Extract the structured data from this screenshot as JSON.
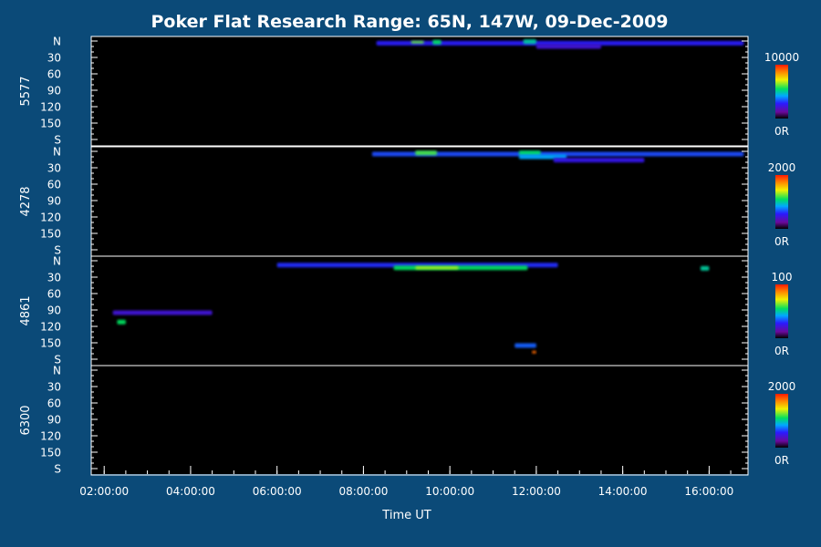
{
  "title": "Poker Flat Research Range: 65N, 147W, 09-Dec-2009",
  "colors": {
    "background": "#0b4a78",
    "plot": "#000000",
    "axis": "#ffffff"
  },
  "chart_data": {
    "type": "heatmap",
    "title": "Poker Flat Research Range: 65N, 147W, 09-Dec-2009",
    "xlabel": "Time UT",
    "x_tick_labels": [
      "02:00:00",
      "04:00:00",
      "06:00:00",
      "08:00:00",
      "10:00:00",
      "12:00:00",
      "14:00:00",
      "16:00:00"
    ],
    "x_range_hours": [
      1.7,
      16.9
    ],
    "y_tick_labels": [
      "N",
      "30",
      "60",
      "90",
      "120",
      "150",
      "S"
    ],
    "y_range_deg": [
      0,
      180
    ],
    "grid": false,
    "panels": [
      {
        "wavelength": "5577",
        "colorbar": {
          "max": "10000",
          "min": "0R"
        },
        "features": [
          {
            "t_start": 8.3,
            "t_end": 16.8,
            "elev_deg": 4,
            "intensity": 0.28
          },
          {
            "t_start": 9.1,
            "t_end": 9.4,
            "elev_deg": 2,
            "intensity": 0.62
          },
          {
            "t_start": 9.6,
            "t_end": 9.8,
            "elev_deg": 2,
            "intensity": 0.55
          },
          {
            "t_start": 11.7,
            "t_end": 12.0,
            "elev_deg": 1,
            "intensity": 0.5
          },
          {
            "t_start": 12.0,
            "t_end": 13.5,
            "elev_deg": 10,
            "intensity": 0.22
          }
        ]
      },
      {
        "wavelength": "4278",
        "colorbar": {
          "max": "2000",
          "min": "0R"
        },
        "features": [
          {
            "t_start": 8.2,
            "t_end": 16.8,
            "elev_deg": 5,
            "intensity": 0.33
          },
          {
            "t_start": 9.2,
            "t_end": 9.7,
            "elev_deg": 3,
            "intensity": 0.6
          },
          {
            "t_start": 11.6,
            "t_end": 12.1,
            "elev_deg": 3,
            "intensity": 0.55
          },
          {
            "t_start": 11.6,
            "t_end": 12.7,
            "elev_deg": 10,
            "intensity": 0.42
          },
          {
            "t_start": 12.4,
            "t_end": 14.5,
            "elev_deg": 16,
            "intensity": 0.25
          }
        ]
      },
      {
        "wavelength": "4861",
        "colorbar": {
          "max": "100",
          "min": "0R"
        },
        "features": [
          {
            "t_start": 6.0,
            "t_end": 12.5,
            "elev_deg": 8,
            "intensity": 0.3
          },
          {
            "t_start": 8.7,
            "t_end": 11.8,
            "elev_deg": 13,
            "intensity": 0.55
          },
          {
            "t_start": 9.2,
            "t_end": 10.2,
            "elev_deg": 13,
            "intensity": 0.68
          },
          {
            "t_start": 15.8,
            "t_end": 16.0,
            "elev_deg": 14,
            "intensity": 0.5
          },
          {
            "t_start": 2.3,
            "t_end": 2.5,
            "elev_deg": 112,
            "intensity": 0.55
          },
          {
            "t_start": 2.2,
            "t_end": 4.5,
            "elev_deg": 95,
            "intensity": 0.22
          },
          {
            "t_start": 11.5,
            "t_end": 12.0,
            "elev_deg": 155,
            "intensity": 0.35
          },
          {
            "t_start": 11.9,
            "t_end": 12.0,
            "elev_deg": 167,
            "intensity": 0.9
          }
        ]
      },
      {
        "wavelength": "6300",
        "colorbar": {
          "max": "2000",
          "min": "0R"
        },
        "features": []
      }
    ]
  }
}
